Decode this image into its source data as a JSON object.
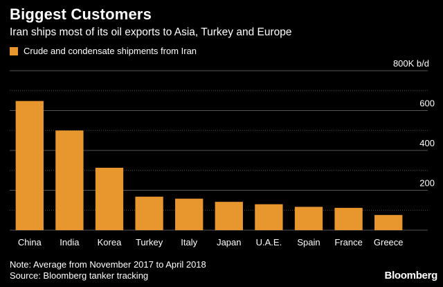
{
  "header": {
    "title": "Biggest Customers",
    "subtitle": "Iran ships most of its oil exports to Asia, Turkey and Europe"
  },
  "colors": {
    "background": "#000000",
    "bar": "#E8962E",
    "grid": "#555555",
    "text": "#FFFFFF"
  },
  "chart_data": {
    "type": "bar",
    "title": "Biggest Customers",
    "subtitle": "Iran ships most of its oil exports to Asia, Turkey and Europe",
    "series": [
      {
        "name": "Crude and condensate shipments from Iran",
        "values": [
          648,
          500,
          313,
          168,
          158,
          142,
          130,
          117,
          112,
          76
        ]
      }
    ],
    "categories": [
      "China",
      "India",
      "Korea",
      "Turkey",
      "Italy",
      "Japan",
      "U.A.E.",
      "Spain",
      "France",
      "Greece"
    ],
    "ylim": [
      0,
      800
    ],
    "yticks": [
      200,
      400,
      600
    ],
    "ytick_labels": [
      "200",
      "400",
      "600"
    ],
    "y_top_label": "800K b/d",
    "y_axis_position": "right",
    "grid": true,
    "legend_position": "top-left"
  },
  "footer": {
    "note": "Note: Average from November 2017 to April 2018",
    "source": "Source: Bloomberg tanker tracking",
    "brand": "Bloomberg"
  }
}
